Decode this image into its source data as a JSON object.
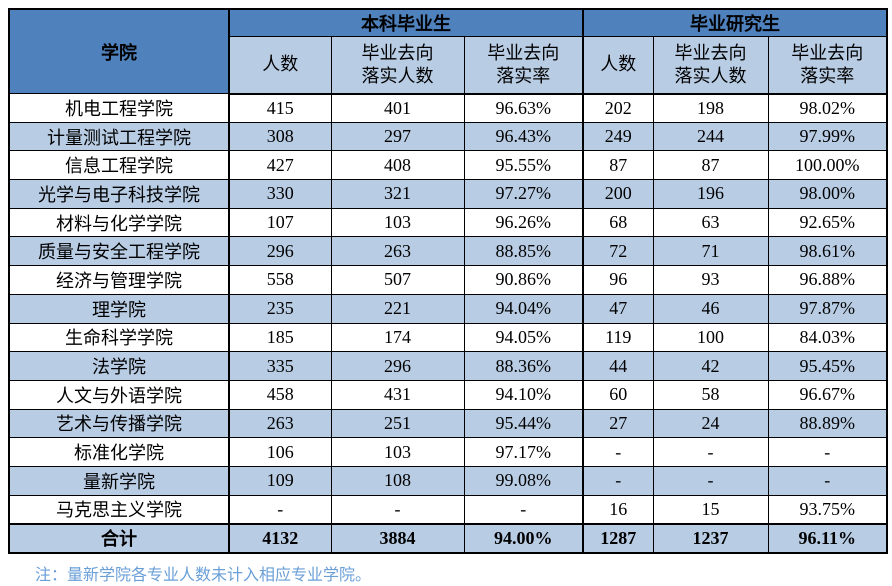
{
  "table": {
    "college_header": "学院",
    "groups": [
      {
        "label": "本科毕业生",
        "columns": [
          "人数",
          "毕业去向\n落实人数",
          "毕业去向\n落实率"
        ]
      },
      {
        "label": "毕业研究生",
        "columns": [
          "人数",
          "毕业去向\n落实人数",
          "毕业去向\n落实率"
        ]
      }
    ],
    "rows": [
      {
        "college": "机电工程学院",
        "values": [
          "415",
          "401",
          "96.63%",
          "202",
          "198",
          "98.02%"
        ]
      },
      {
        "college": "计量测试工程学院",
        "values": [
          "308",
          "297",
          "96.43%",
          "249",
          "244",
          "97.99%"
        ]
      },
      {
        "college": "信息工程学院",
        "values": [
          "427",
          "408",
          "95.55%",
          "87",
          "87",
          "100.00%"
        ]
      },
      {
        "college": "光学与电子科技学院",
        "values": [
          "330",
          "321",
          "97.27%",
          "200",
          "196",
          "98.00%"
        ]
      },
      {
        "college": "材料与化学学院",
        "values": [
          "107",
          "103",
          "96.26%",
          "68",
          "63",
          "92.65%"
        ]
      },
      {
        "college": "质量与安全工程学院",
        "values": [
          "296",
          "263",
          "88.85%",
          "72",
          "71",
          "98.61%"
        ]
      },
      {
        "college": "经济与管理学院",
        "values": [
          "558",
          "507",
          "90.86%",
          "96",
          "93",
          "96.88%"
        ]
      },
      {
        "college": "理学院",
        "values": [
          "235",
          "221",
          "94.04%",
          "47",
          "46",
          "97.87%"
        ]
      },
      {
        "college": "生命科学学院",
        "values": [
          "185",
          "174",
          "94.05%",
          "119",
          "100",
          "84.03%"
        ]
      },
      {
        "college": "法学院",
        "values": [
          "335",
          "296",
          "88.36%",
          "44",
          "42",
          "95.45%"
        ]
      },
      {
        "college": "人文与外语学院",
        "values": [
          "458",
          "431",
          "94.10%",
          "60",
          "58",
          "96.67%"
        ]
      },
      {
        "college": "艺术与传播学院",
        "values": [
          "263",
          "251",
          "95.44%",
          "27",
          "24",
          "88.89%"
        ]
      },
      {
        "college": "标准化学院",
        "values": [
          "106",
          "103",
          "97.17%",
          "-",
          "-",
          "-"
        ]
      },
      {
        "college": "量新学院",
        "values": [
          "109",
          "108",
          "99.08%",
          "-",
          "-",
          "-"
        ]
      },
      {
        "college": "马克思主义学院",
        "values": [
          "-",
          "-",
          "-",
          "16",
          "15",
          "93.75%"
        ]
      }
    ],
    "total_row": {
      "college": "合计",
      "values": [
        "4132",
        "3884",
        "94.00%",
        "1287",
        "1237",
        "96.11%"
      ]
    }
  },
  "note": "注：量新学院各专业人数未计入相应专业学院。",
  "colors": {
    "header_blue": "#4F81BD",
    "light_blue": "#B8CCE4",
    "border": "#000000",
    "note_blue": "#6A9FD8"
  }
}
